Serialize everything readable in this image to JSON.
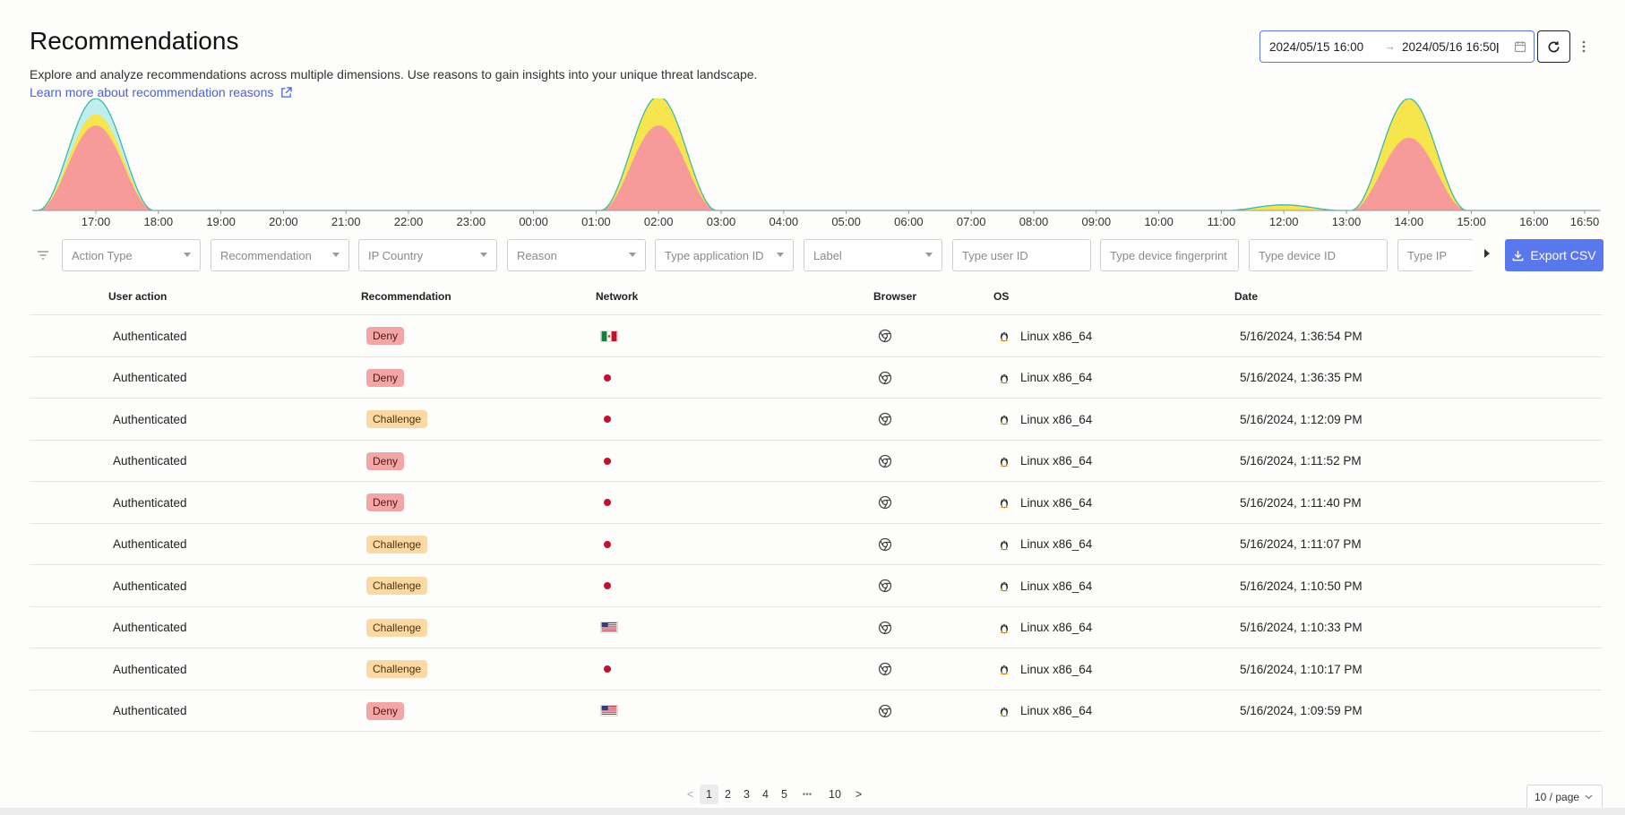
{
  "header": {
    "title": "Recommendations",
    "subtitle": "Explore and analyze recommendations across multiple dimensions. Use reasons to gain insights into your unique threat landscape.",
    "learn_link": "Learn more about recommendation reasons"
  },
  "date_range": {
    "start": "2024/05/15 16:00",
    "arrow": "→",
    "end": "2024/05/16 16:50"
  },
  "chart_data": {
    "type": "area",
    "x": [
      "17:00",
      "18:00",
      "19:00",
      "20:00",
      "21:00",
      "22:00",
      "23:00",
      "00:00",
      "01:00",
      "02:00",
      "03:00",
      "04:00",
      "05:00",
      "06:00",
      "07:00",
      "08:00",
      "09:00",
      "10:00",
      "11:00",
      "12:00",
      "13:00",
      "14:00",
      "15:00",
      "16:00",
      "16:50"
    ],
    "stacked": true,
    "series": [
      {
        "color": "#f79a9a",
        "peaks": [
          {
            "center": "17:00",
            "value": 0.76
          },
          {
            "center": "02:00",
            "value": 0.76
          },
          {
            "center": "14:00",
            "value": 0.65
          }
        ]
      },
      {
        "color": "#f7e54d",
        "peaks": [
          {
            "center": "17:00",
            "value": 0.1
          },
          {
            "center": "02:00",
            "value": 0.26
          },
          {
            "center": "12:00",
            "value": 0.05
          },
          {
            "center": "14:00",
            "value": 0.35
          }
        ]
      },
      {
        "color": "#bfeeee",
        "peaks": [
          {
            "center": "17:00",
            "value": 0.14
          }
        ]
      }
    ],
    "grid": false,
    "legend": "none"
  },
  "filters": {
    "action_type": "Action Type",
    "recommendation": "Recommendation",
    "ip_country": "IP Country",
    "reason": "Reason",
    "application_id": "Type application ID",
    "label": "Label",
    "user_id": "Type user ID",
    "device_fingerprint": "Type device fingerprint",
    "device_id": "Type device ID",
    "ip": "Type IP",
    "export_label": "Export CSV"
  },
  "table": {
    "columns": {
      "user_action": "User action",
      "recommendation": "Recommendation",
      "network": "Network",
      "browser": "Browser",
      "os": "OS",
      "date": "Date"
    },
    "rows": [
      {
        "action": "Authenticated",
        "rec": "Deny",
        "rec_kind": "deny",
        "network": "mx",
        "os": "Linux x86_64",
        "date": "5/16/2024, 1:36:54 PM"
      },
      {
        "action": "Authenticated",
        "rec": "Deny",
        "rec_kind": "deny",
        "network": "dot",
        "os": "Linux x86_64",
        "date": "5/16/2024, 1:36:35 PM"
      },
      {
        "action": "Authenticated",
        "rec": "Challenge",
        "rec_kind": "challenge",
        "network": "dot",
        "os": "Linux x86_64",
        "date": "5/16/2024, 1:12:09 PM"
      },
      {
        "action": "Authenticated",
        "rec": "Deny",
        "rec_kind": "deny",
        "network": "dot",
        "os": "Linux x86_64",
        "date": "5/16/2024, 1:11:52 PM"
      },
      {
        "action": "Authenticated",
        "rec": "Deny",
        "rec_kind": "deny",
        "network": "dot",
        "os": "Linux x86_64",
        "date": "5/16/2024, 1:11:40 PM"
      },
      {
        "action": "Authenticated",
        "rec": "Challenge",
        "rec_kind": "challenge",
        "network": "dot",
        "os": "Linux x86_64",
        "date": "5/16/2024, 1:11:07 PM"
      },
      {
        "action": "Authenticated",
        "rec": "Challenge",
        "rec_kind": "challenge",
        "network": "dot",
        "os": "Linux x86_64",
        "date": "5/16/2024, 1:10:50 PM"
      },
      {
        "action": "Authenticated",
        "rec": "Challenge",
        "rec_kind": "challenge",
        "network": "us",
        "os": "Linux x86_64",
        "date": "5/16/2024, 1:10:33 PM"
      },
      {
        "action": "Authenticated",
        "rec": "Challenge",
        "rec_kind": "challenge",
        "network": "dot",
        "os": "Linux x86_64",
        "date": "5/16/2024, 1:10:17 PM"
      },
      {
        "action": "Authenticated",
        "rec": "Deny",
        "rec_kind": "deny",
        "network": "us",
        "os": "Linux x86_64",
        "date": "5/16/2024, 1:09:59 PM"
      }
    ]
  },
  "pagination": {
    "prev": "<",
    "pages": [
      "1",
      "2",
      "3",
      "4",
      "5"
    ],
    "ellipsis": "•••",
    "last": "10",
    "next": ">",
    "current": "1",
    "page_size": "10 / page"
  },
  "icons": {
    "browser": "chrome-icon",
    "os": "linux-icon",
    "refresh": "refresh-icon",
    "calendar": "calendar-icon",
    "external": "external-link-icon"
  }
}
